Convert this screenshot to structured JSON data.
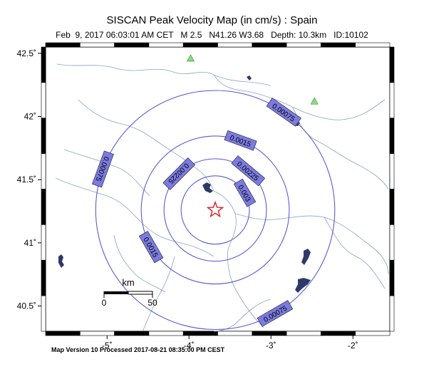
{
  "map": {
    "title": "SISCAN Peak Velocity Map (in cm/s) : Spain",
    "subtitle": "Feb  9, 2017 06:03:01 AM CET   M 2.5   N41.26 W3.68   Depth: 10.3km   ID:10102",
    "footer": "Map Version 10 Processed 2017-08-21 08:35:00 PM CEST",
    "lon_range": [
      -5.75,
      -1.55
    ],
    "lat_range": [
      40.3,
      42.55
    ],
    "x_ticks": [
      {
        "value": -5,
        "label": "-5˚"
      },
      {
        "value": -4,
        "label": "-4˚"
      },
      {
        "value": -3,
        "label": "-3˚"
      },
      {
        "value": -2,
        "label": "-2˚"
      }
    ],
    "y_ticks": [
      {
        "value": 42.5,
        "label": "42.5˚"
      },
      {
        "value": 42,
        "label": "42˚"
      },
      {
        "value": 41.5,
        "label": "41.5˚"
      },
      {
        "value": 41,
        "label": "41˚"
      },
      {
        "value": 40.5,
        "label": "40.5˚"
      }
    ],
    "epicenter": {
      "lon": -3.68,
      "lat": 41.26
    },
    "contours": [
      {
        "value": "0.00075",
        "radius_km": 105,
        "labels": [
          "0.00075",
          "0.00075",
          "0.00075"
        ]
      },
      {
        "value": "0.0015",
        "radius_km": 65,
        "labels": [
          "0.0015",
          "0.0015"
        ]
      },
      {
        "value": "0.00225",
        "radius_km": 45,
        "labels": [
          "0.00225",
          "0.00225"
        ]
      },
      {
        "value": "0.003",
        "radius_km": 30,
        "labels": [
          "0.003"
        ]
      }
    ],
    "stations": [
      {
        "lon": -3.98,
        "lat": 42.46
      },
      {
        "lon": -2.47,
        "lat": 42.12
      }
    ],
    "scale_bar": {
      "unit": "km",
      "ticks": [
        "0",
        "50"
      ]
    },
    "colors": {
      "contour": "#5b5bd6",
      "label_fill": "#7b7be0",
      "river": "#8aa4bf",
      "lake": "#2e3a66",
      "station": "#7fe27f",
      "epicenter": "#e02020"
    }
  }
}
